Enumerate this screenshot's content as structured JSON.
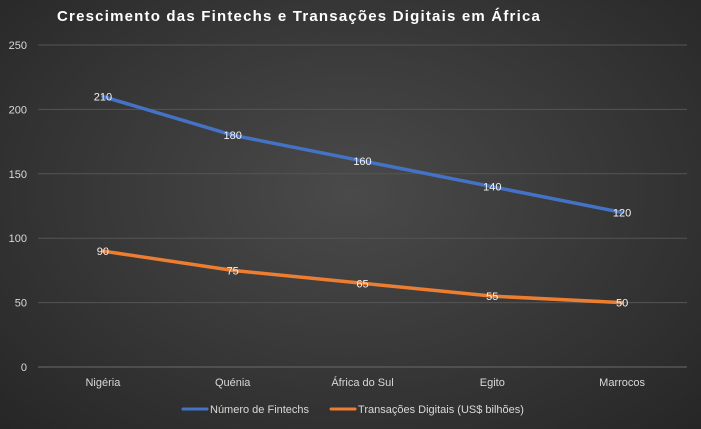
{
  "chart_data": {
    "type": "line",
    "title": "Crescimento das Fintechs e Transações Digitais em África",
    "categories": [
      "Nigéria",
      "Quénia",
      "África do Sul",
      "Egito",
      "Marrocos"
    ],
    "ylim": [
      0,
      250
    ],
    "yticks": [
      0,
      50,
      100,
      150,
      200,
      250
    ],
    "grid": true,
    "legend_position": "bottom",
    "series": [
      {
        "name": "Número de Fintechs",
        "values": [
          210,
          180,
          160,
          140,
          120
        ],
        "color": "#4472c4"
      },
      {
        "name": "Transações Digitais (US$ bilhões)",
        "values": [
          90,
          75,
          65,
          55,
          50
        ],
        "color": "#ed7d31"
      }
    ]
  }
}
